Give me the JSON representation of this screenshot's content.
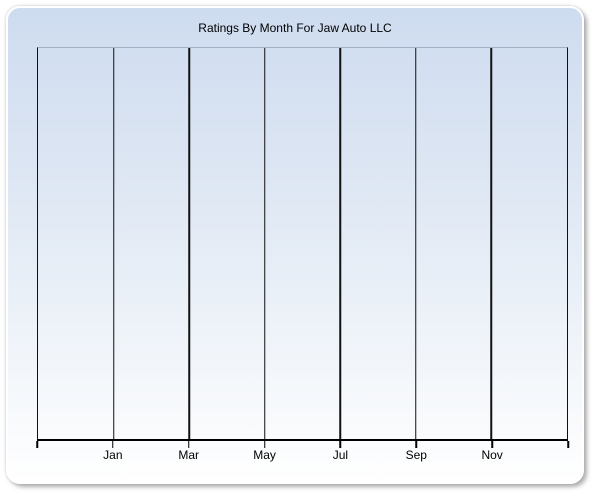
{
  "page": {
    "background_color": "#ffffff"
  },
  "panel": {
    "background_gradient_top": "#cedcf0",
    "background_gradient_bottom": "#ffffff",
    "border_color": "#ffffff",
    "shadow_color": "#6e6e6e"
  },
  "chart_data": {
    "type": "line",
    "title": "Ratings By Month For Jaw Auto LLC",
    "title_color": "#000000",
    "series": [],
    "x_tick_labels": [
      "Jan",
      "Mar",
      "May",
      "Jul",
      "Sep",
      "Nov"
    ],
    "x_axis": {
      "tick_mark_count": 8,
      "vertical_gridlines": 6,
      "gridline_color": "#111111",
      "axis_line_color": "#000000",
      "label_color": "#000000"
    },
    "y_axis": {
      "labels": [],
      "gridlines_visible": false
    },
    "plot_top_border_color": "#a3afc0",
    "legend": "none",
    "grid": "vertical-only"
  }
}
